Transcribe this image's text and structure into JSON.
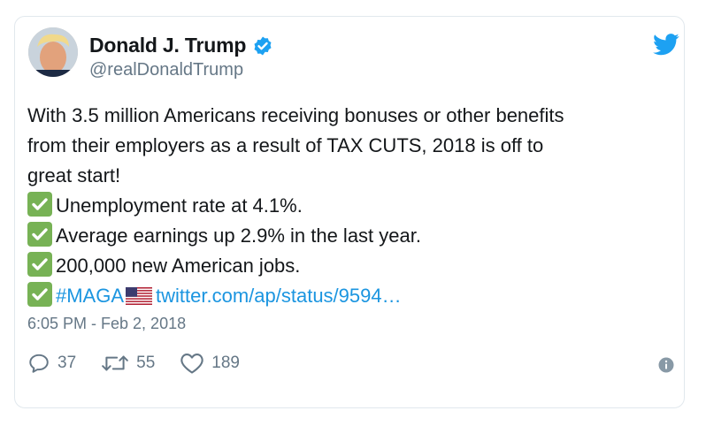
{
  "tweet": {
    "author_name": "Donald J. Trump",
    "handle": "@realDonaldTrump",
    "lines": {
      "l1": "With 3.5 million Americans receiving bonuses or other benefits",
      "l2": "from their employers as a result of TAX CUTS, 2018 is off to",
      "l3": "great start!",
      "l4": "Unemployment rate at 4.1%.",
      "l5": "Average earnings up 2.9% in the last year.",
      "l6": "200,000 new American jobs."
    },
    "hashtag": "#MAGA",
    "link": "twitter.com/ap/status/9594…",
    "timestamp": "6:05 PM - Feb 2, 2018"
  },
  "actions": {
    "replies": "37",
    "retweets": "55",
    "likes": "189"
  },
  "icons": {
    "verified": "verified-badge-icon",
    "brand": "twitter-bird-icon",
    "check": "check-mark-emoji-icon",
    "flag": "us-flag-emoji-icon",
    "reply": "reply-icon",
    "retweet": "retweet-icon",
    "like": "heart-icon",
    "info": "info-icon"
  },
  "colors": {
    "brand_blue": "#1da1f2",
    "link_blue": "#1b95e0",
    "check_green": "#77b255",
    "muted_text": "#657786",
    "border": "#e1e8ed"
  }
}
